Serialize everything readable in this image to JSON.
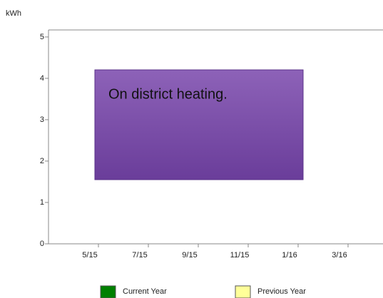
{
  "chart_data": {
    "type": "bar",
    "y_label": "kWh",
    "categories": [
      "5/15",
      "7/15",
      "9/15",
      "11/15",
      "1/16",
      "3/16"
    ],
    "series": [
      {
        "name": "Current Year",
        "color": "#008000",
        "values": [
          null,
          null,
          null,
          null,
          null,
          null
        ]
      },
      {
        "name": "Previous Year",
        "color": "#ffff99",
        "values": [
          null,
          null,
          null,
          null,
          null,
          null
        ]
      }
    ],
    "ylim": [
      0,
      5.17
    ],
    "yticks": [
      0,
      1,
      2,
      3,
      4,
      5
    ],
    "annotation": "On district heating."
  }
}
